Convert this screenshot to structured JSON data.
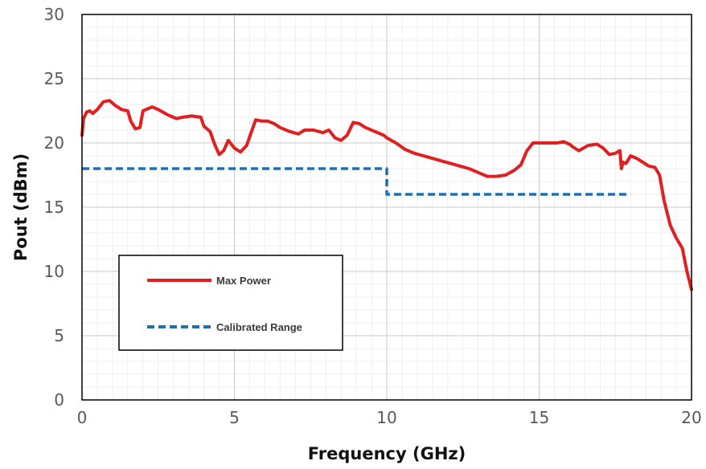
{
  "chart_data": {
    "type": "line",
    "title": "",
    "xlabel": "Frequency (GHz)",
    "ylabel": "Pout (dBm)",
    "xlim": [
      0,
      20
    ],
    "ylim": [
      0,
      30
    ],
    "x_ticks": [
      "0",
      "5",
      "10",
      "15",
      "20"
    ],
    "y_ticks": [
      "0",
      "5",
      "10",
      "15",
      "20",
      "25",
      "30"
    ],
    "grid": true,
    "legend_position": "left",
    "series": [
      {
        "name": "Max Power",
        "style": "solid",
        "color": "#e02020",
        "x": [
          0,
          0.05,
          0.15,
          0.25,
          0.35,
          0.5,
          0.7,
          0.9,
          1.1,
          1.3,
          1.5,
          1.6,
          1.75,
          1.9,
          2.0,
          2.1,
          2.3,
          2.5,
          2.8,
          3.1,
          3.3,
          3.6,
          3.9,
          4.0,
          4.2,
          4.35,
          4.5,
          4.65,
          4.8,
          4.9,
          5.0,
          5.2,
          5.4,
          5.55,
          5.7,
          5.9,
          6.1,
          6.3,
          6.5,
          6.8,
          7.1,
          7.3,
          7.6,
          7.9,
          8.1,
          8.3,
          8.5,
          8.7,
          8.9,
          9.1,
          9.3,
          9.6,
          9.9,
          10.0,
          10.3,
          10.6,
          10.9,
          11.2,
          11.5,
          11.8,
          12.1,
          12.4,
          12.7,
          13.0,
          13.3,
          13.6,
          13.9,
          14.2,
          14.4,
          14.6,
          14.8,
          15.0,
          15.3,
          15.6,
          15.8,
          16.0,
          16.1,
          16.3,
          16.6,
          16.9,
          17.1,
          17.3,
          17.5,
          17.65,
          17.7,
          17.75,
          17.85,
          18.0,
          18.2,
          18.4,
          18.6,
          18.8,
          18.95,
          19.1,
          19.3,
          19.5,
          19.7,
          19.85,
          20.0
        ],
        "y": [
          20.6,
          21.9,
          22.4,
          22.5,
          22.3,
          22.6,
          23.2,
          23.3,
          22.9,
          22.6,
          22.5,
          21.7,
          21.1,
          21.2,
          22.5,
          22.6,
          22.8,
          22.6,
          22.2,
          21.9,
          22.0,
          22.1,
          22.0,
          21.3,
          20.9,
          19.9,
          19.1,
          19.4,
          20.2,
          19.9,
          19.6,
          19.3,
          19.8,
          20.8,
          21.8,
          21.7,
          21.7,
          21.5,
          21.2,
          20.9,
          20.7,
          21.0,
          21.0,
          20.8,
          21.0,
          20.4,
          20.2,
          20.6,
          21.6,
          21.5,
          21.2,
          20.9,
          20.6,
          20.4,
          20.0,
          19.5,
          19.2,
          19.0,
          18.8,
          18.6,
          18.4,
          18.2,
          18.0,
          17.7,
          17.4,
          17.4,
          17.5,
          17.9,
          18.3,
          19.4,
          20.0,
          20.0,
          20.0,
          20.0,
          20.1,
          19.9,
          19.7,
          19.4,
          19.8,
          19.9,
          19.6,
          19.1,
          19.2,
          19.4,
          18.0,
          18.5,
          18.4,
          19.0,
          18.8,
          18.5,
          18.2,
          18.1,
          17.5,
          15.5,
          13.6,
          12.6,
          11.8,
          10.0,
          8.6
        ]
      },
      {
        "name": "Calibrated Range",
        "style": "dashed",
        "color": "#1f6fb2",
        "x": [
          0,
          10,
          10,
          18
        ],
        "y": [
          18,
          18,
          16,
          16
        ]
      }
    ]
  }
}
